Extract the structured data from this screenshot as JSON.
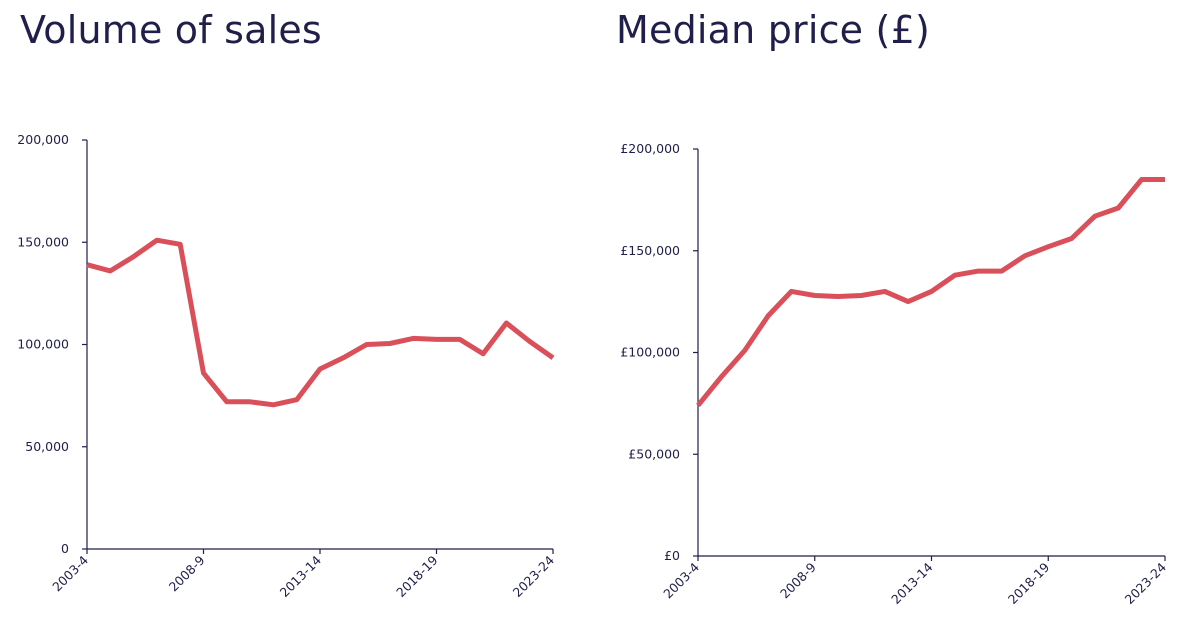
{
  "chart_data": [
    {
      "type": "line",
      "title": "Volume of sales",
      "xlabel": "",
      "ylabel": "",
      "color": "#d9505a",
      "ylim": [
        0,
        200000
      ],
      "yticks": [
        "0",
        "50,000",
        "100,000",
        "150,000",
        "200,000"
      ],
      "ytick_values": [
        0,
        50000,
        100000,
        150000,
        200000
      ],
      "xtick_labels": [
        "2003-4",
        "2008-9",
        "2013-14",
        "2018-19",
        "2023-24"
      ],
      "xtick_index": [
        0,
        5,
        10,
        15,
        20
      ],
      "x": [
        "2003-4",
        "2004-5",
        "2005-6",
        "2006-7",
        "2007-8",
        "2008-9",
        "2009-10",
        "2010-11",
        "2011-12",
        "2012-13",
        "2013-14",
        "2014-15",
        "2015-16",
        "2016-17",
        "2017-18",
        "2018-19",
        "2019-20",
        "2020-21",
        "2021-22",
        "2022-23",
        "2023-24"
      ],
      "values": [
        139000,
        136000,
        143000,
        151000,
        149000,
        86000,
        72000,
        72000,
        70500,
        73000,
        88000,
        93500,
        100000,
        100500,
        103000,
        102500,
        102500,
        95500,
        110500,
        101500,
        93500
      ],
      "grid": false
    },
    {
      "type": "line",
      "title": "Median price (£)",
      "xlabel": "",
      "ylabel": "",
      "color": "#d9505a",
      "ylim": [
        0,
        200000
      ],
      "yticks": [
        "£0",
        "£50,000",
        "£100,000",
        "£150,000",
        "£200,000"
      ],
      "ytick_values": [
        0,
        50000,
        100000,
        150000,
        200000
      ],
      "xtick_labels": [
        "2003-4",
        "2008-9",
        "2013-14",
        "2018-19",
        "2023-24"
      ],
      "xtick_index": [
        0,
        5,
        10,
        15,
        20
      ],
      "x": [
        "2003-4",
        "2004-5",
        "2005-6",
        "2006-7",
        "2007-8",
        "2008-9",
        "2009-10",
        "2010-11",
        "2011-12",
        "2012-13",
        "2013-14",
        "2014-15",
        "2015-16",
        "2016-17",
        "2017-18",
        "2018-19",
        "2019-20",
        "2020-21",
        "2021-22",
        "2022-23",
        "2023-24"
      ],
      "values": [
        74000,
        88000,
        101000,
        118000,
        130000,
        128000,
        127500,
        128000,
        130000,
        125000,
        130000,
        138000,
        140000,
        140000,
        147500,
        152000,
        156000,
        167000,
        171000,
        185000,
        185000
      ],
      "grid": false
    }
  ]
}
